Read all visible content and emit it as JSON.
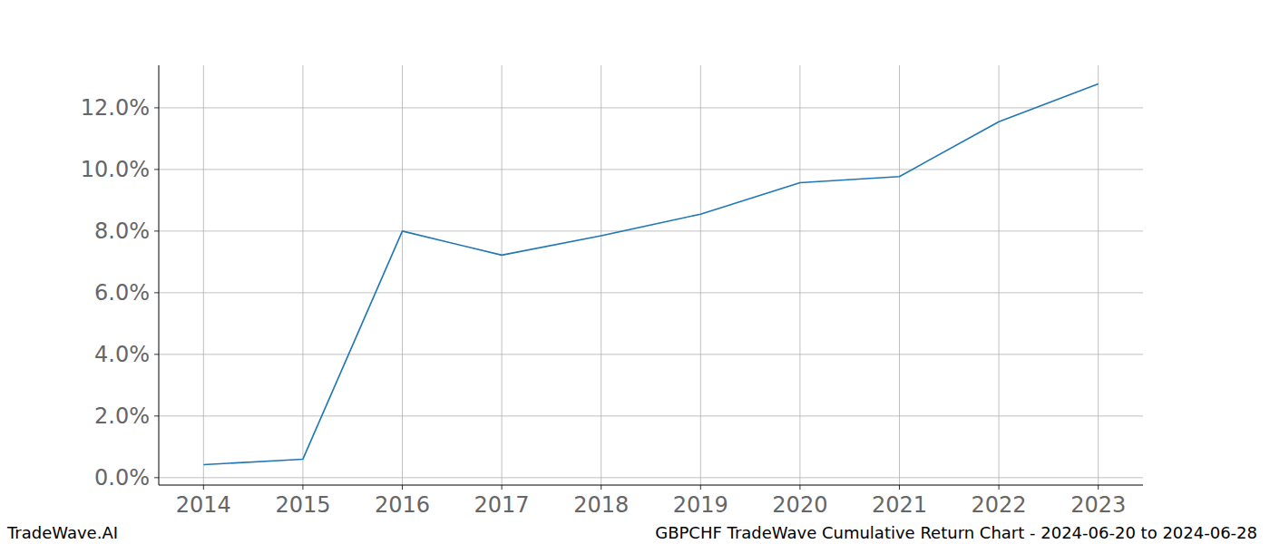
{
  "chart_data": {
    "type": "line",
    "title": "GBPCHF TradeWave Cumulative Return Chart - 2024-06-20 to 2024-06-28",
    "source": "TradeWave.AI",
    "x": [
      2014,
      2015,
      2016,
      2017,
      2018,
      2019,
      2020,
      2021,
      2022,
      2023
    ],
    "series": [
      {
        "name": "GBPCHF",
        "color": "#1f77b4",
        "values": [
          0.42,
          0.6,
          8.0,
          7.22,
          7.85,
          8.55,
          9.57,
          9.77,
          11.55,
          12.78
        ]
      }
    ],
    "xlim": [
      2013.55,
      2023.45
    ],
    "xticks": [
      2014,
      2015,
      2016,
      2017,
      2018,
      2019,
      2020,
      2021,
      2022,
      2023
    ],
    "ylim": [
      -0.24,
      13.38
    ],
    "yticks": [
      {
        "value": 0,
        "label": "0.0%"
      },
      {
        "value": 2,
        "label": "2.0%"
      },
      {
        "value": 4,
        "label": "4.0%"
      },
      {
        "value": 6,
        "label": "6.0%"
      },
      {
        "value": 8,
        "label": "8.0%"
      },
      {
        "value": 10,
        "label": "10.0%"
      },
      {
        "value": 12,
        "label": "12.0%"
      }
    ],
    "grid": true
  }
}
